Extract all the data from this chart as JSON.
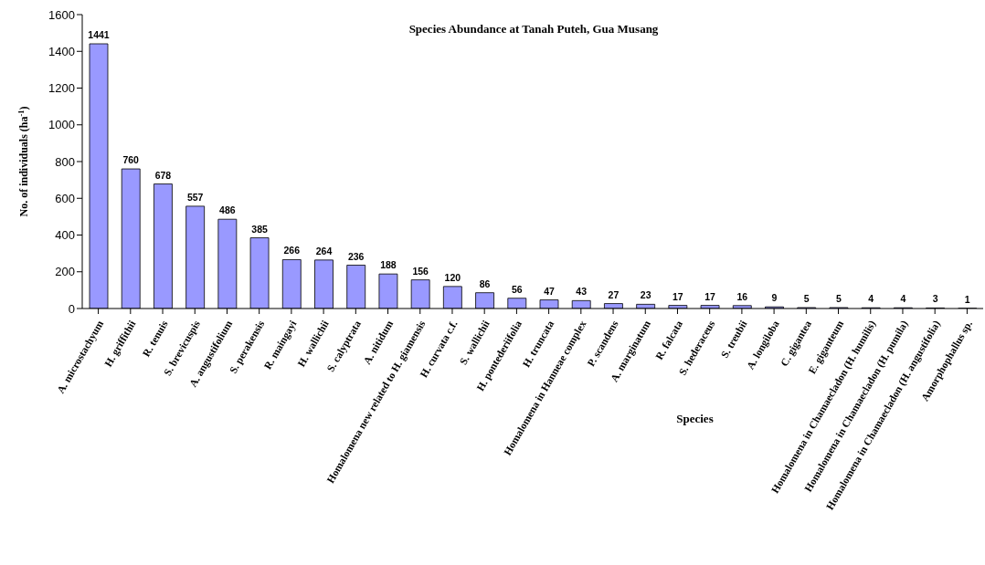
{
  "chart_data": {
    "type": "bar",
    "title": "Species Abundance at Tanah Puteh, Gua Musang",
    "xlabel": "Species",
    "ylabel": "No. of individuals (ha$^{-1}$)",
    "categories": [
      "A. microstachyum",
      "H. griffithii",
      "R. tenuis",
      "S. brevicuspis",
      "A. angustifolium",
      "S. perakensis",
      "R. maingayi",
      "H. wallichii",
      "S. calyptrata",
      "A. nitidum",
      "Homalomena new related to H. giamensis",
      "H. curvata c.f.",
      "S. wallichii",
      "H. pontederiifolia",
      "H. truncata",
      "Homalomena in Hanneae complex",
      "P. scandens",
      "A. marginatum",
      "R. falcata",
      "S. hederaceus",
      "S. treubii",
      "A. longiloba",
      "C. gigantea",
      "E. giganteum",
      "Homalomena in Chamaecladon (H. humilis)",
      "Homalomena in Chamaecladon (H. pumila)",
      "Homalomena in Chamaecladon (H. angustifolia)",
      "Amorphophallus sp."
    ],
    "values": [
      1441,
      760,
      678,
      557,
      486,
      385,
      266,
      264,
      236,
      188,
      156,
      120,
      86,
      56,
      47,
      43,
      27,
      23,
      17,
      17,
      16,
      9,
      5,
      5,
      4,
      4,
      3,
      1
    ],
    "color": "#9999ff",
    "ylim": [
      0,
      1600
    ],
    "yticks": [
      0,
      200,
      400,
      600,
      800,
      1000,
      1200,
      1400,
      1600
    ],
    "grid": false,
    "legend": false,
    "data_labels": true
  }
}
